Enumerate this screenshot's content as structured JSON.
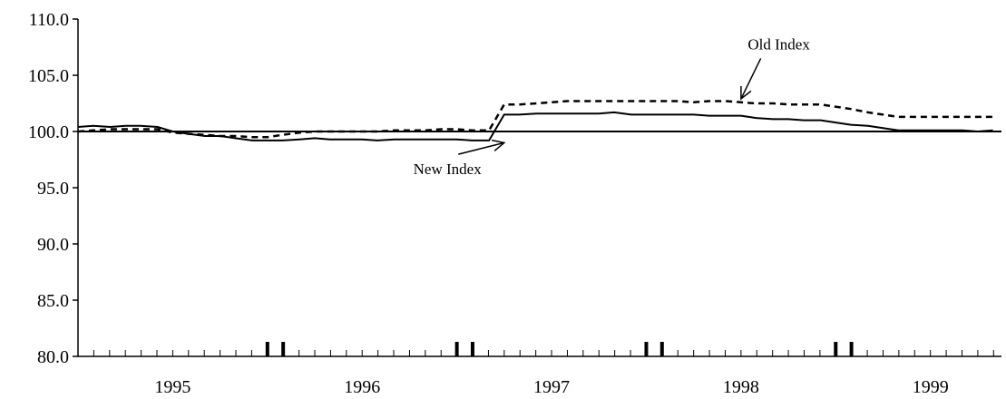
{
  "chart_data": {
    "type": "line",
    "title": "",
    "xlabel": "",
    "ylabel": "",
    "ylim": [
      80.0,
      110.0
    ],
    "y_ticks": [
      "110.0",
      "105.0",
      "100.0",
      "95.0",
      "90.0",
      "85.0",
      "80.0"
    ],
    "x_start_year": 1994.5,
    "x_end_year": 1999.375,
    "x_tick_labels": [
      "1995",
      "1996",
      "1997",
      "1998",
      "1999"
    ],
    "x_tick_years": [
      1995,
      1996,
      1997,
      1998,
      1999
    ],
    "grid": false,
    "legend": "none",
    "reference_line": 100.0,
    "series": [
      {
        "name": "New Index",
        "style": "solid",
        "color": "#000000",
        "x": [
          1994.5,
          1994.58,
          1994.67,
          1994.75,
          1994.83,
          1994.92,
          1995.0,
          1995.08,
          1995.17,
          1995.25,
          1995.33,
          1995.42,
          1995.5,
          1995.58,
          1995.67,
          1995.75,
          1995.83,
          1995.92,
          1996.0,
          1996.08,
          1996.17,
          1996.25,
          1996.33,
          1996.42,
          1996.5,
          1996.58,
          1996.67,
          1996.75,
          1996.83,
          1996.92,
          1997.0,
          1997.08,
          1997.17,
          1997.25,
          1997.33,
          1997.42,
          1997.5,
          1997.58,
          1997.67,
          1997.75,
          1997.83,
          1997.92,
          1998.0,
          1998.08,
          1998.17,
          1998.25,
          1998.33,
          1998.42,
          1998.5,
          1998.58,
          1998.67,
          1998.75,
          1998.83,
          1998.92,
          1999.0,
          1999.08,
          1999.17,
          1999.25,
          1999.33
        ],
        "values": [
          100.4,
          100.5,
          100.4,
          100.5,
          100.5,
          100.4,
          100.0,
          99.8,
          99.6,
          99.6,
          99.4,
          99.2,
          99.2,
          99.2,
          99.3,
          99.4,
          99.3,
          99.3,
          99.3,
          99.2,
          99.3,
          99.3,
          99.3,
          99.3,
          99.3,
          99.2,
          99.2,
          101.5,
          101.5,
          101.6,
          101.6,
          101.6,
          101.6,
          101.6,
          101.7,
          101.5,
          101.5,
          101.5,
          101.5,
          101.5,
          101.4,
          101.4,
          101.4,
          101.2,
          101.1,
          101.1,
          101.0,
          101.0,
          100.8,
          100.6,
          100.5,
          100.3,
          100.1,
          100.1,
          100.1,
          100.1,
          100.1,
          100.0,
          100.1
        ]
      },
      {
        "name": "Old Index",
        "style": "dashed",
        "color": "#000000",
        "x": [
          1994.5,
          1994.58,
          1994.67,
          1994.75,
          1994.83,
          1994.92,
          1995.0,
          1995.08,
          1995.17,
          1995.25,
          1995.33,
          1995.42,
          1995.5,
          1995.58,
          1995.67,
          1995.75,
          1995.83,
          1995.92,
          1996.0,
          1996.08,
          1996.17,
          1996.25,
          1996.33,
          1996.42,
          1996.5,
          1996.58,
          1996.67,
          1996.75,
          1996.83,
          1996.92,
          1997.0,
          1997.08,
          1997.17,
          1997.25,
          1997.33,
          1997.42,
          1997.5,
          1997.58,
          1997.67,
          1997.75,
          1997.83,
          1997.92,
          1998.0,
          1998.08,
          1998.17,
          1998.25,
          1998.33,
          1998.42,
          1998.5,
          1998.58,
          1998.67,
          1998.75,
          1998.83,
          1998.92,
          1999.0,
          1999.08,
          1999.17,
          1999.25,
          1999.33
        ],
        "values": [
          100.0,
          100.1,
          100.2,
          100.2,
          100.2,
          100.2,
          99.9,
          99.8,
          99.7,
          99.6,
          99.6,
          99.5,
          99.5,
          99.7,
          99.9,
          100.0,
          100.0,
          100.0,
          100.0,
          100.0,
          100.1,
          100.1,
          100.1,
          100.2,
          100.2,
          100.1,
          100.1,
          102.4,
          102.4,
          102.5,
          102.6,
          102.7,
          102.7,
          102.7,
          102.7,
          102.7,
          102.7,
          102.7,
          102.7,
          102.6,
          102.7,
          102.7,
          102.6,
          102.5,
          102.5,
          102.4,
          102.4,
          102.4,
          102.2,
          102.0,
          101.7,
          101.5,
          101.3,
          101.3,
          101.3,
          101.3,
          101.3,
          101.3,
          101.3
        ]
      }
    ],
    "annotations": [
      {
        "text": "Old Index",
        "point_year": 1998.0,
        "point_value": 102.9,
        "label_year": 1998.2,
        "label_value": 107.3
      },
      {
        "text": "New Index",
        "point_year": 1996.75,
        "point_value": 99.0,
        "label_year": 1996.45,
        "label_value": 96.2
      }
    ]
  }
}
